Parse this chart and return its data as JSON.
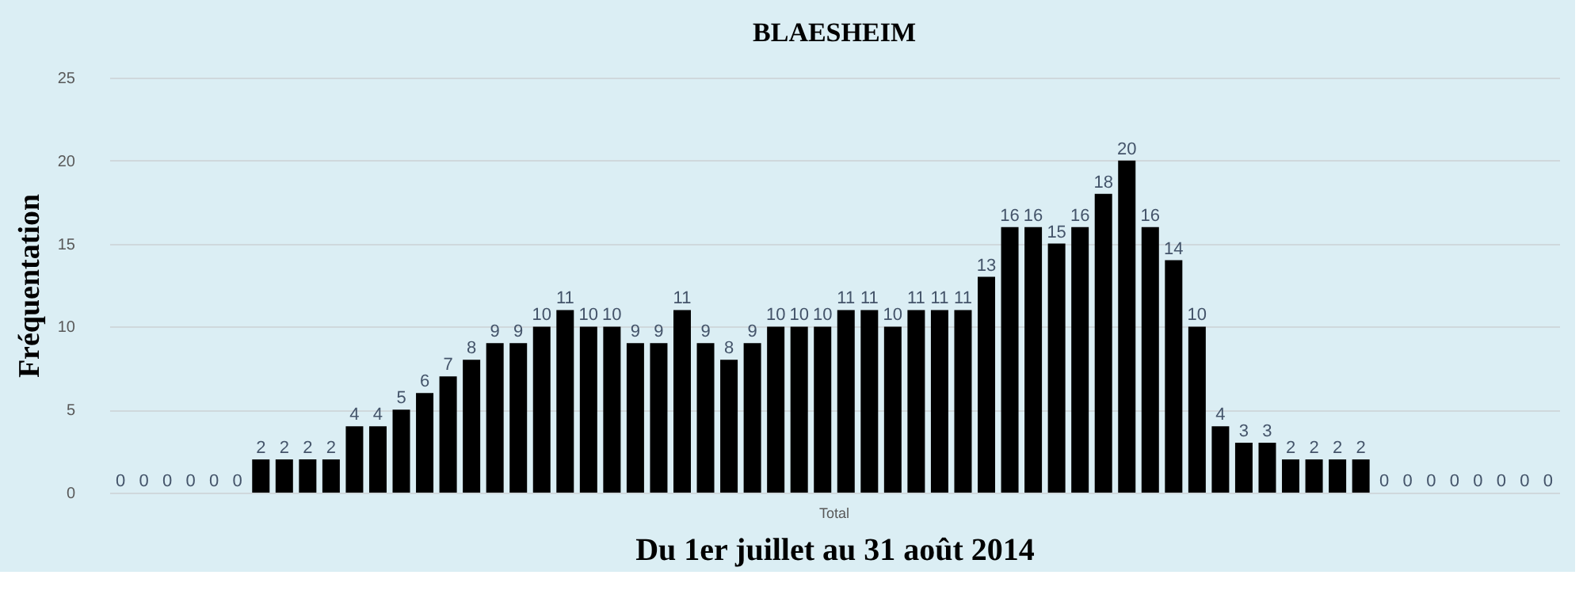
{
  "chart_data": {
    "type": "bar",
    "title": "BLAESHEIM",
    "ylabel": "Fréquentation",
    "xlabel": "Du 1er juillet au 31 août 2014",
    "annotations": [
      "Total"
    ],
    "categories": [
      null,
      null,
      null,
      null,
      null,
      null,
      null,
      null,
      null,
      null,
      null,
      null,
      null,
      null,
      null,
      null,
      null,
      null,
      null,
      null,
      null,
      null,
      null,
      null,
      null,
      null,
      null,
      null,
      null,
      null,
      null,
      null,
      null,
      null,
      null,
      null,
      null,
      null,
      null,
      null,
      null,
      null,
      null,
      null,
      null,
      null,
      null,
      null,
      null,
      null,
      null,
      null,
      null,
      null,
      null,
      null,
      null,
      null,
      null,
      null,
      null,
      null
    ],
    "values": [
      0,
      0,
      0,
      0,
      0,
      0,
      2,
      2,
      2,
      2,
      4,
      4,
      5,
      6,
      7,
      8,
      9,
      9,
      10,
      11,
      10,
      10,
      9,
      9,
      11,
      9,
      8,
      9,
      10,
      10,
      10,
      11,
      11,
      10,
      11,
      11,
      11,
      13,
      16,
      16,
      15,
      16,
      18,
      20,
      16,
      14,
      10,
      4,
      3,
      3,
      2,
      2,
      2,
      2,
      0,
      0,
      0,
      0,
      0,
      0,
      0,
      0
    ],
    "color": "#000000",
    "ylim": [
      0,
      25
    ],
    "yticks": [
      0,
      5,
      10,
      15,
      20,
      25
    ],
    "grid": "y",
    "data_labels": true
  }
}
